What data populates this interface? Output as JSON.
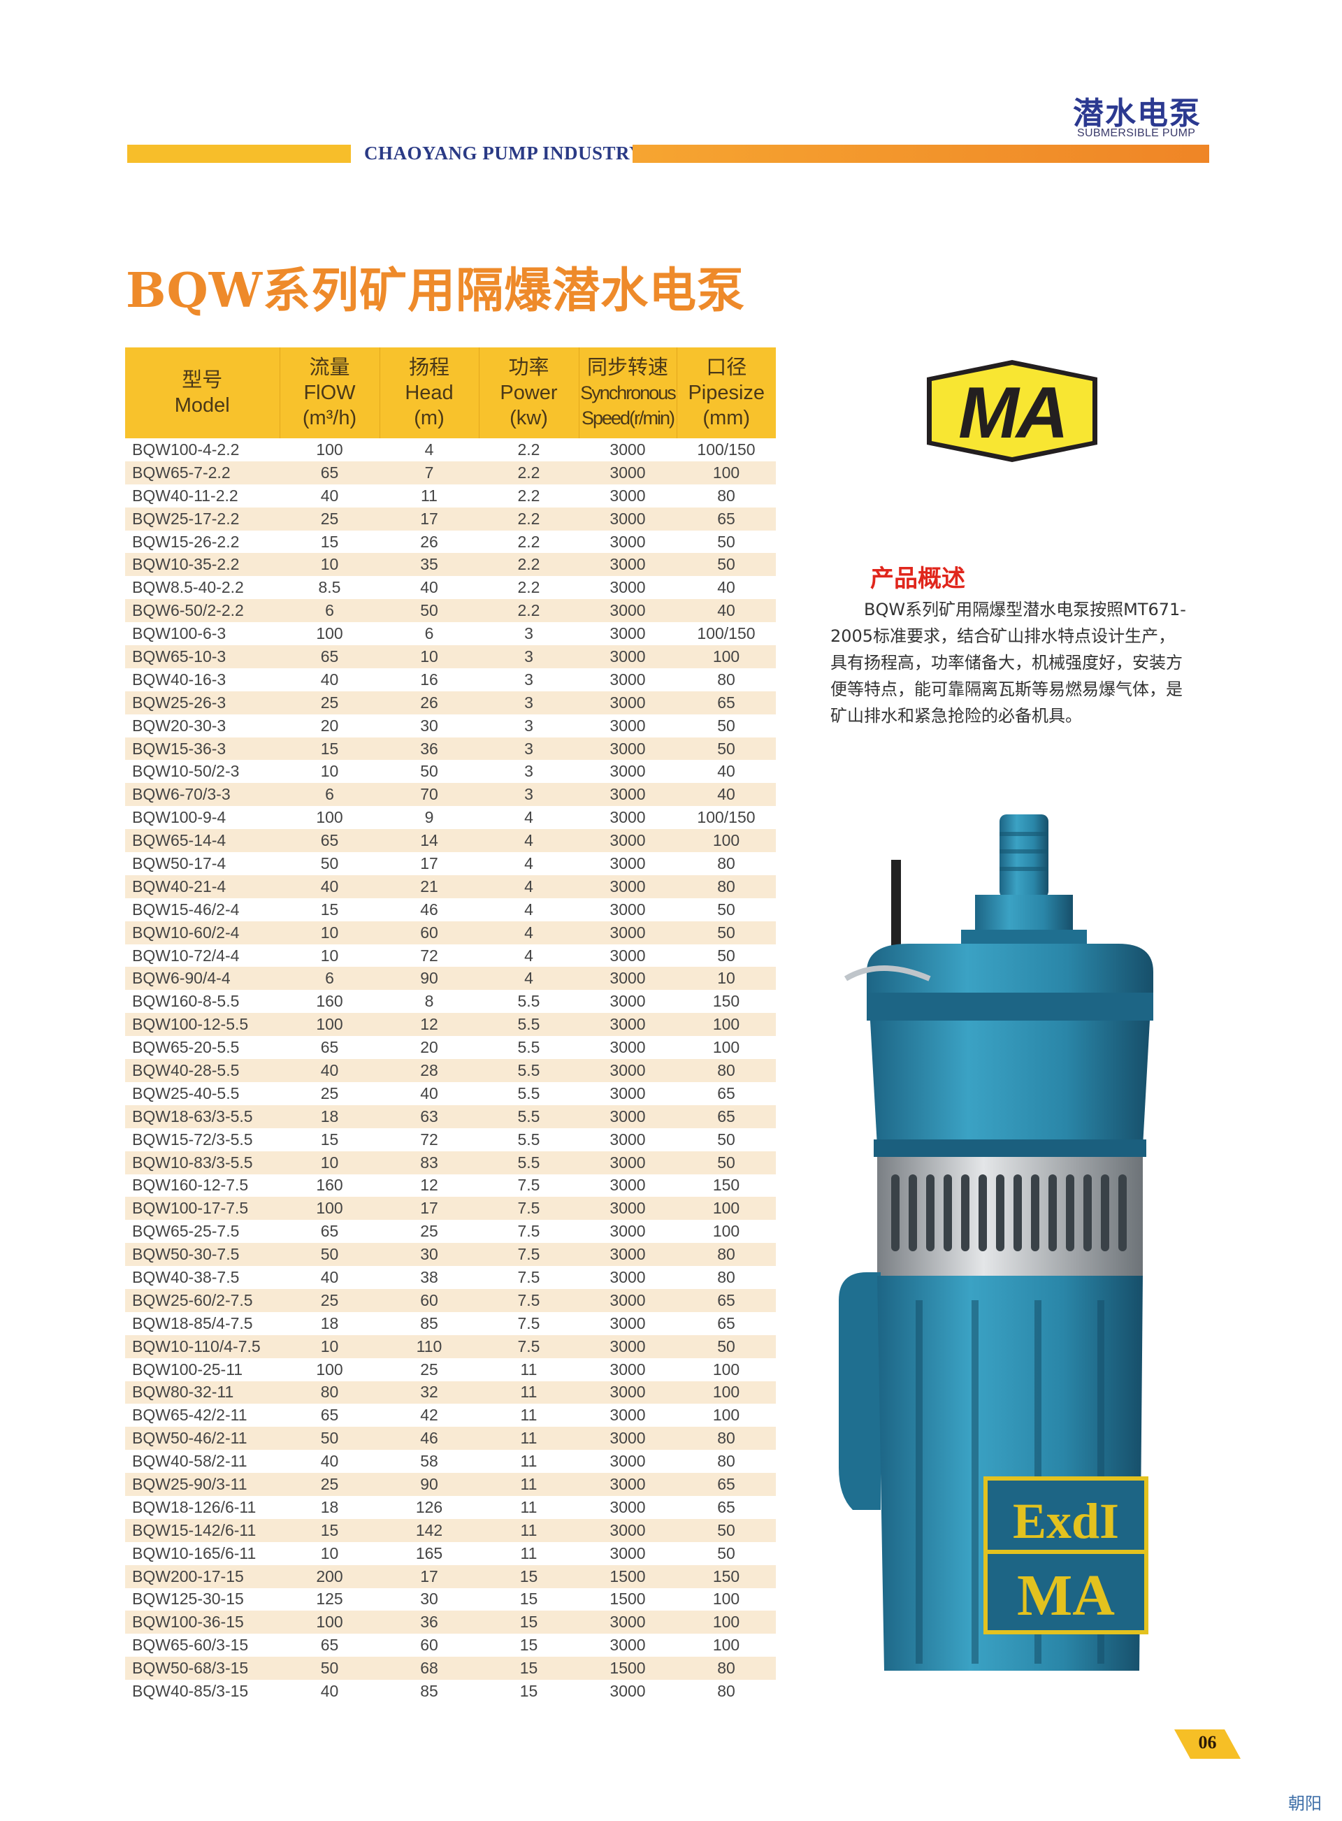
{
  "header": {
    "company": "CHAOYANG PUMP INDUSTRY",
    "category_cn": "潜水电泵",
    "category_en": "SUBMERSIBLE PUMP"
  },
  "title": "BQW系列矿用隔爆潜水电泵",
  "table": {
    "headers": [
      {
        "cn": "型号",
        "en": "Model",
        "unit": ""
      },
      {
        "cn": "流量",
        "en": "FlOW",
        "unit": "(m³/h)"
      },
      {
        "cn": "扬程",
        "en": "Head",
        "unit": "(m)"
      },
      {
        "cn": "功率",
        "en": "Power",
        "unit": "(kw)"
      },
      {
        "cn": "同步转速",
        "en": "Synchronous",
        "unit": "Speed(r/min)"
      },
      {
        "cn": "口径",
        "en": "Pipesize",
        "unit": "(mm)"
      }
    ],
    "rows": [
      [
        "BQW100-4-2.2",
        "100",
        "4",
        "2.2",
        "3000",
        "100/150"
      ],
      [
        "BQW65-7-2.2",
        "65",
        "7",
        "2.2",
        "3000",
        "100"
      ],
      [
        "BQW40-11-2.2",
        "40",
        "11",
        "2.2",
        "3000",
        "80"
      ],
      [
        "BQW25-17-2.2",
        "25",
        "17",
        "2.2",
        "3000",
        "65"
      ],
      [
        "BQW15-26-2.2",
        "15",
        "26",
        "2.2",
        "3000",
        "50"
      ],
      [
        "BQW10-35-2.2",
        "10",
        "35",
        "2.2",
        "3000",
        "50"
      ],
      [
        "BQW8.5-40-2.2",
        "8.5",
        "40",
        "2.2",
        "3000",
        "40"
      ],
      [
        "BQW6-50/2-2.2",
        "6",
        "50",
        "2.2",
        "3000",
        "40"
      ],
      [
        "BQW100-6-3",
        "100",
        "6",
        "3",
        "3000",
        "100/150"
      ],
      [
        "BQW65-10-3",
        "65",
        "10",
        "3",
        "3000",
        "100"
      ],
      [
        "BQW40-16-3",
        "40",
        "16",
        "3",
        "3000",
        "80"
      ],
      [
        "BQW25-26-3",
        "25",
        "26",
        "3",
        "3000",
        "65"
      ],
      [
        "BQW20-30-3",
        "20",
        "30",
        "3",
        "3000",
        "50"
      ],
      [
        "BQW15-36-3",
        "15",
        "36",
        "3",
        "3000",
        "50"
      ],
      [
        "BQW10-50/2-3",
        "10",
        "50",
        "3",
        "3000",
        "40"
      ],
      [
        "BQW6-70/3-3",
        "6",
        "70",
        "3",
        "3000",
        "40"
      ],
      [
        "BQW100-9-4",
        "100",
        "9",
        "4",
        "3000",
        "100/150"
      ],
      [
        "BQW65-14-4",
        "65",
        "14",
        "4",
        "3000",
        "100"
      ],
      [
        "BQW50-17-4",
        "50",
        "17",
        "4",
        "3000",
        "80"
      ],
      [
        "BQW40-21-4",
        "40",
        "21",
        "4",
        "3000",
        "80"
      ],
      [
        "BQW15-46/2-4",
        "15",
        "46",
        "4",
        "3000",
        "50"
      ],
      [
        "BQW10-60/2-4",
        "10",
        "60",
        "4",
        "3000",
        "50"
      ],
      [
        "BQW10-72/4-4",
        "10",
        "72",
        "4",
        "3000",
        "50"
      ],
      [
        "BQW6-90/4-4",
        "6",
        "90",
        "4",
        "3000",
        "10"
      ],
      [
        "BQW160-8-5.5",
        "160",
        "8",
        "5.5",
        "3000",
        "150"
      ],
      [
        "BQW100-12-5.5",
        "100",
        "12",
        "5.5",
        "3000",
        "100"
      ],
      [
        "BQW65-20-5.5",
        "65",
        "20",
        "5.5",
        "3000",
        "100"
      ],
      [
        "BQW40-28-5.5",
        "40",
        "28",
        "5.5",
        "3000",
        "80"
      ],
      [
        "BQW25-40-5.5",
        "25",
        "40",
        "5.5",
        "3000",
        "65"
      ],
      [
        "BQW18-63/3-5.5",
        "18",
        "63",
        "5.5",
        "3000",
        "65"
      ],
      [
        "BQW15-72/3-5.5",
        "15",
        "72",
        "5.5",
        "3000",
        "50"
      ],
      [
        "BQW10-83/3-5.5",
        "10",
        "83",
        "5.5",
        "3000",
        "50"
      ],
      [
        "BQW160-12-7.5",
        "160",
        "12",
        "7.5",
        "3000",
        "150"
      ],
      [
        "BQW100-17-7.5",
        "100",
        "17",
        "7.5",
        "3000",
        "100"
      ],
      [
        "BQW65-25-7.5",
        "65",
        "25",
        "7.5",
        "3000",
        "100"
      ],
      [
        "BQW50-30-7.5",
        "50",
        "30",
        "7.5",
        "3000",
        "80"
      ],
      [
        "BQW40-38-7.5",
        "40",
        "38",
        "7.5",
        "3000",
        "80"
      ],
      [
        "BQW25-60/2-7.5",
        "25",
        "60",
        "7.5",
        "3000",
        "65"
      ],
      [
        "BQW18-85/4-7.5",
        "18",
        "85",
        "7.5",
        "3000",
        "65"
      ],
      [
        "BQW10-110/4-7.5",
        "10",
        "110",
        "7.5",
        "3000",
        "50"
      ],
      [
        "BQW100-25-11",
        "100",
        "25",
        "11",
        "3000",
        "100"
      ],
      [
        "BQW80-32-11",
        "80",
        "32",
        "11",
        "3000",
        "100"
      ],
      [
        "BQW65-42/2-11",
        "65",
        "42",
        "11",
        "3000",
        "100"
      ],
      [
        "BQW50-46/2-11",
        "50",
        "46",
        "11",
        "3000",
        "80"
      ],
      [
        "BQW40-58/2-11",
        "40",
        "58",
        "11",
        "3000",
        "80"
      ],
      [
        "BQW25-90/3-11",
        "25",
        "90",
        "11",
        "3000",
        "65"
      ],
      [
        "BQW18-126/6-11",
        "18",
        "126",
        "11",
        "3000",
        "65"
      ],
      [
        "BQW15-142/6-11",
        "15",
        "142",
        "11",
        "3000",
        "50"
      ],
      [
        "BQW10-165/6-11",
        "10",
        "165",
        "11",
        "3000",
        "50"
      ],
      [
        "BQW200-17-15",
        "200",
        "17",
        "15",
        "1500",
        "150"
      ],
      [
        "BQW125-30-15",
        "125",
        "30",
        "15",
        "1500",
        "100"
      ],
      [
        "BQW100-36-15",
        "100",
        "36",
        "15",
        "3000",
        "100"
      ],
      [
        "BQW65-60/3-15",
        "65",
        "60",
        "15",
        "3000",
        "100"
      ],
      [
        "BQW50-68/3-15",
        "50",
        "68",
        "15",
        "1500",
        "80"
      ],
      [
        "BQW40-85/3-15",
        "40",
        "85",
        "15",
        "3000",
        "80"
      ]
    ]
  },
  "ma_logo": "MA",
  "overview": {
    "title": "产品概述",
    "lines": [
      "　　BQW系列矿用隔爆型潜水电泵按照MT671-",
      "2005标准要求，结合矿山排水特点设计生产，",
      "具有扬程高，功率储备大，机械强度好，安装方",
      "便等特点，能可靠隔离瓦斯等易燃易爆气体，是",
      "矿山排水和紧急抢险的必备机具。"
    ]
  },
  "pump_markings": [
    "ExdI",
    "MA"
  ],
  "page_number": "06",
  "footer_brand": "朝阳",
  "colors": {
    "header_yellow": "#f8c22c",
    "stripe": "#f9ead3",
    "title_orange": "#ee8a2a",
    "navy": "#2b3990",
    "overview_red": "#e0261c",
    "pump_blue": "#2a86a8"
  }
}
